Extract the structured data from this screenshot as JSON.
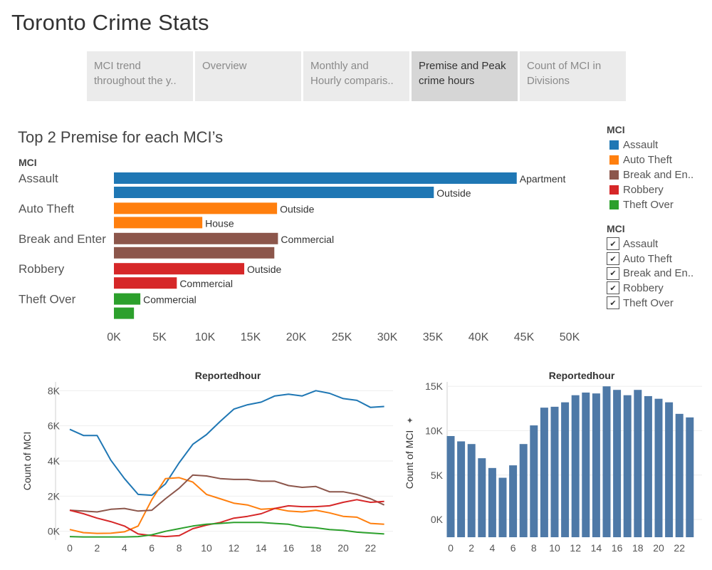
{
  "app": {
    "title": "Toronto Crime Stats"
  },
  "tabs": [
    {
      "label": "MCI trend throughout the y..",
      "active": false
    },
    {
      "label": "Overview",
      "active": false
    },
    {
      "label": "Monthly and Hourly comparis..",
      "active": false
    },
    {
      "label": "Premise and Peak crime hours",
      "active": true
    },
    {
      "label": "Count of MCI in Divisions",
      "active": false
    }
  ],
  "colors": {
    "Assault": "#1f77b4",
    "Auto Theft": "#ff7f0e",
    "Break and Enter": "#8c564b",
    "Robbery": "#d62728",
    "Theft Over": "#2ca02c",
    "column": "#4e79a7"
  },
  "legend": {
    "title": "MCI",
    "items": [
      {
        "label": "Assault",
        "color": "#1f77b4"
      },
      {
        "label": "Auto Theft",
        "color": "#ff7f0e"
      },
      {
        "label": "Break and En..",
        "color": "#8c564b"
      },
      {
        "label": "Robbery",
        "color": "#d62728"
      },
      {
        "label": "Theft Over",
        "color": "#2ca02c"
      }
    ]
  },
  "filter": {
    "title": "MCI",
    "items": [
      {
        "label": "Assault",
        "checked": true
      },
      {
        "label": "Auto Theft",
        "checked": true
      },
      {
        "label": "Break and En..",
        "checked": true
      },
      {
        "label": "Robbery",
        "checked": true
      },
      {
        "label": "Theft Over",
        "checked": true
      }
    ]
  },
  "chart_data": [
    {
      "type": "bar",
      "orientation": "horizontal",
      "title": "Top 2 Premise for each MCI’s",
      "row_header": "MCI",
      "xlim": [
        0,
        50000
      ],
      "xticks": [
        "0K",
        "5K",
        "10K",
        "15K",
        "20K",
        "25K",
        "30K",
        "35K",
        "40K",
        "45K",
        "50K"
      ],
      "groups": [
        {
          "category": "Assault",
          "bars": [
            {
              "label": "Apartment",
              "value": 44200
            },
            {
              "label": "Outside",
              "value": 35100
            }
          ]
        },
        {
          "category": "Auto Theft",
          "bars": [
            {
              "label": "Outside",
              "value": 17900
            },
            {
              "label": "House",
              "value": 9700
            }
          ]
        },
        {
          "category": "Break and Enter",
          "bars": [
            {
              "label": "Commercial",
              "value": 18000
            },
            {
              "label": "",
              "value": 17600
            }
          ]
        },
        {
          "category": "Robbery",
          "bars": [
            {
              "label": "Outside",
              "value": 14300
            },
            {
              "label": "Commercial",
              "value": 6900
            }
          ]
        },
        {
          "category": "Theft Over",
          "bars": [
            {
              "label": "Commercial",
              "value": 2900
            },
            {
              "label": "",
              "value": 2200
            }
          ]
        }
      ]
    },
    {
      "type": "line",
      "title": "Reportedhour",
      "ylabel": "Count of MCI",
      "x": [
        0,
        1,
        2,
        3,
        4,
        5,
        6,
        7,
        8,
        9,
        10,
        11,
        12,
        13,
        14,
        15,
        16,
        17,
        18,
        19,
        20,
        21,
        22,
        23
      ],
      "xticks": [
        0,
        2,
        4,
        6,
        8,
        10,
        12,
        14,
        16,
        18,
        20,
        22
      ],
      "yticks": [
        "0K",
        "2K",
        "4K",
        "6K",
        "8K"
      ],
      "ylim": [
        -500,
        8500
      ],
      "series": [
        {
          "name": "Assault",
          "values": [
            5800,
            5450,
            5450,
            4050,
            3000,
            2100,
            2050,
            2700,
            3900,
            4950,
            5500,
            6250,
            6950,
            7200,
            7350,
            7700,
            7800,
            7700,
            8000,
            7850,
            7550,
            7450,
            7050,
            7100
          ]
        },
        {
          "name": "Auto Theft",
          "values": [
            100,
            -80,
            -120,
            -110,
            -30,
            300,
            1800,
            3000,
            3050,
            2800,
            2100,
            1850,
            1600,
            1500,
            1250,
            1300,
            1150,
            1100,
            1200,
            1050,
            850,
            800,
            450,
            400
          ]
        },
        {
          "name": "Break and Enter",
          "values": [
            1200,
            1150,
            1100,
            1250,
            1300,
            1150,
            1200,
            1850,
            2450,
            3200,
            3150,
            3000,
            2950,
            2950,
            2850,
            2850,
            2600,
            2500,
            2550,
            2250,
            2250,
            2100,
            1850,
            1500
          ]
        },
        {
          "name": "Robbery",
          "values": [
            1200,
            1000,
            750,
            550,
            300,
            -150,
            -250,
            -300,
            -250,
            150,
            350,
            500,
            750,
            850,
            1000,
            1300,
            1450,
            1400,
            1400,
            1450,
            1650,
            1800,
            1650,
            1700
          ]
        },
        {
          "name": "Theft Over",
          "values": [
            -300,
            -320,
            -320,
            -320,
            -320,
            -300,
            -200,
            0,
            150,
            300,
            400,
            450,
            500,
            500,
            500,
            450,
            400,
            250,
            200,
            100,
            50,
            -50,
            -100,
            -150
          ]
        }
      ]
    },
    {
      "type": "bar",
      "title": "Reportedhour",
      "ylabel": "Count of MCI",
      "categories": [
        0,
        1,
        2,
        3,
        4,
        5,
        6,
        7,
        8,
        9,
        10,
        11,
        12,
        13,
        14,
        15,
        16,
        17,
        18,
        19,
        20,
        21,
        22,
        23
      ],
      "xticks": [
        0,
        2,
        4,
        6,
        8,
        10,
        12,
        14,
        16,
        18,
        20,
        22
      ],
      "yticks": [
        "0K",
        "5K",
        "10K",
        "15K"
      ],
      "ylim": [
        -2000,
        15500
      ],
      "values": [
        9400,
        8800,
        8500,
        6900,
        5800,
        4700,
        6100,
        8500,
        10600,
        12600,
        12700,
        13200,
        14000,
        14300,
        14200,
        15000,
        14600,
        14000,
        14600,
        13900,
        13600,
        13200,
        11900,
        11500
      ]
    }
  ]
}
